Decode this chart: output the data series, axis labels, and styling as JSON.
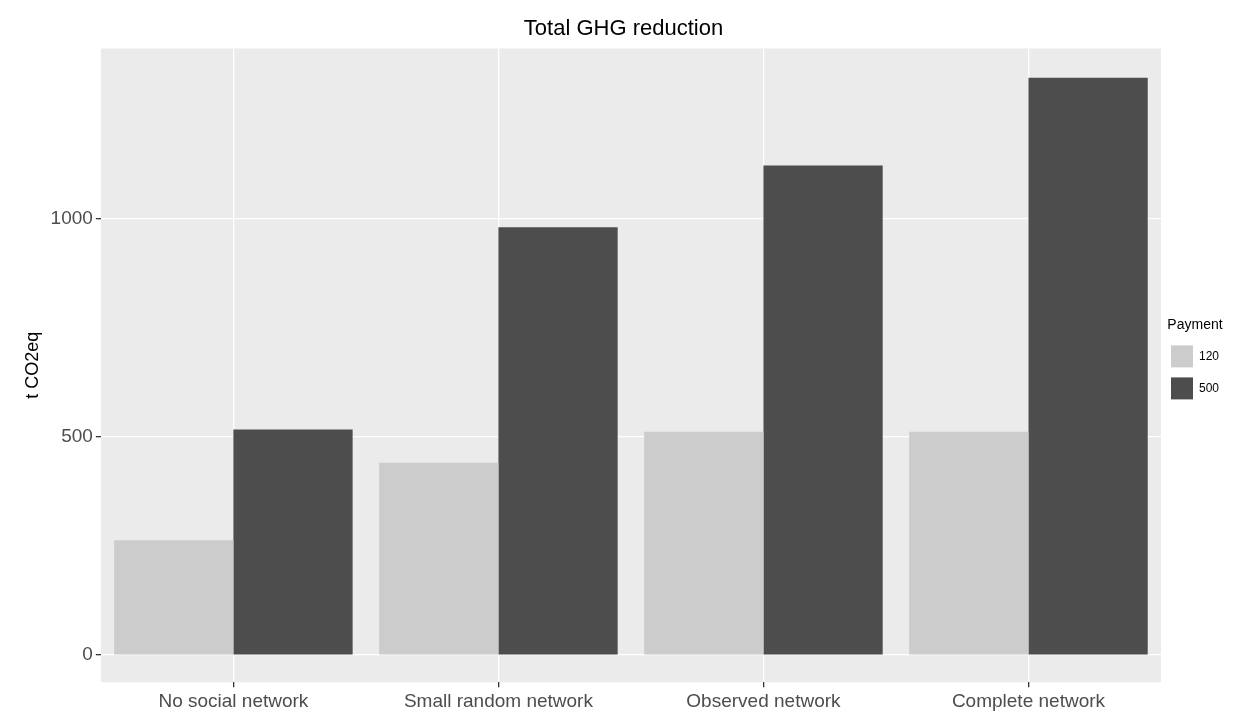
{
  "chart_data": {
    "type": "bar",
    "title": "Total GHG reduction",
    "ylabel": "t CO2eq",
    "legend_title": "Payment",
    "categories": [
      "No social network",
      "Small random network",
      "Observed network",
      "Complete network"
    ],
    "series": [
      {
        "name": "120",
        "color": "#cccccc",
        "values": [
          263,
          441,
          512,
          512
        ]
      },
      {
        "name": "500",
        "color": "#4d4d4d",
        "values": [
          517,
          980,
          1122,
          1323
        ]
      }
    ],
    "ylim": [
      -62,
      1390
    ],
    "yticks": [
      0,
      500,
      1000
    ],
    "grid": true,
    "legend": "right"
  }
}
